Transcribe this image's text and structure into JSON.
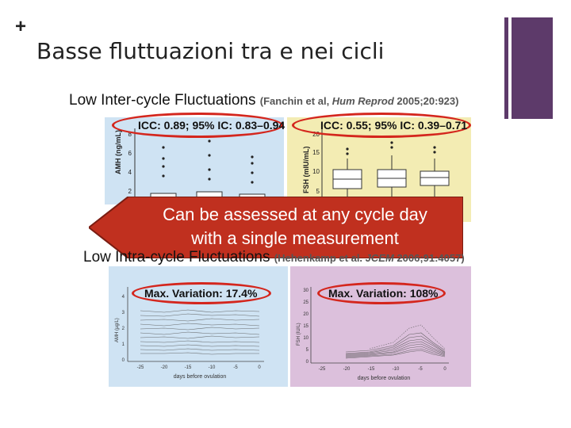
{
  "slide": {
    "plus_symbol": "+",
    "title": "Basse fluttuazioni tra e nei cicli"
  },
  "inter_cycle": {
    "heading": "Low Inter-cycle Fluctuations",
    "citation_open": "(Fanchin et al, ",
    "citation_journal": "Hum Reprod",
    "citation_close": " 2005;20:923)",
    "amh": {
      "icc_label": "ICC: 0.89; 95% IC: 0.83–0.94",
      "ylabel": "AMH (ng/mL)",
      "yticks": [
        "8",
        "6",
        "4",
        "2"
      ]
    },
    "fsh": {
      "icc_label": "ICC: 0.55; 95% IC: 0.39–0.71",
      "ylabel": "FSH (mIU/mL)",
      "yticks": [
        "20",
        "15",
        "10",
        "5"
      ]
    }
  },
  "callout": {
    "line1": "Can be assessed at any cycle day",
    "line2": "with a single measurement",
    "color": "#c0301f"
  },
  "intra_cycle": {
    "heading": "Low Intra-cycle Fluctuations",
    "citation_open": "(Hehenkamp et al. ",
    "citation_journal": "JCEM",
    "citation_close": " 2006;91:4057)",
    "amh": {
      "variation_label": "Max. Variation: 17.4%",
      "ylabel": "AMH (µg/L)",
      "xlabel": "days before ovulation",
      "xticks": [
        "-25",
        "-20",
        "-15",
        "-10",
        "-5",
        "0"
      ],
      "yticks": [
        "4",
        "3",
        "2",
        "1",
        "0"
      ]
    },
    "fsh": {
      "variation_label": "Max. Variation: 108%",
      "ylabel": "FSH (IU/L)",
      "xlabel": "days before ovulation",
      "xticks": [
        "-25",
        "-20",
        "-15",
        "-10",
        "-5",
        "0"
      ],
      "yticks": [
        "30",
        "25",
        "20",
        "15",
        "10",
        "5",
        "0"
      ]
    }
  },
  "colors": {
    "accent_purple": "#5d3a6a",
    "oval_red": "#d4261d",
    "panel_blue": "#cfe3f3",
    "panel_yellow": "#f3ecb3",
    "panel_pink": "#dcc0dc"
  }
}
